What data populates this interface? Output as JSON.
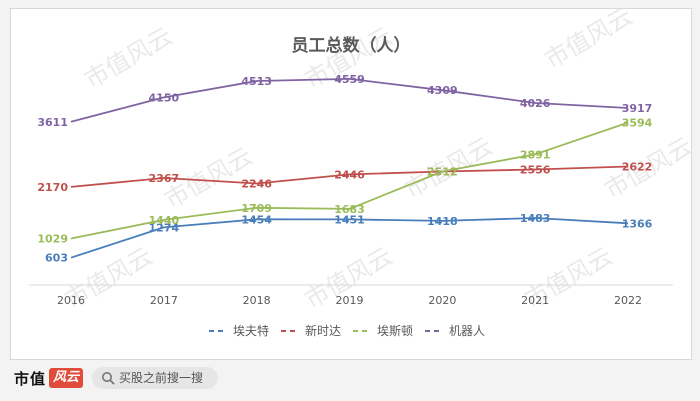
{
  "chart_data": {
    "type": "line",
    "title": "员工总数（人）",
    "xlabel": "",
    "ylabel": "",
    "categories": [
      "2016",
      "2017",
      "2018",
      "2019",
      "2020",
      "2021",
      "2022"
    ],
    "ylim": [
      0,
      5000
    ],
    "grid": false,
    "legend_position": "bottom",
    "series": [
      {
        "name": "埃夫特",
        "color": "#4a7ebb",
        "values": [
          603,
          1274,
          1454,
          1451,
          1418,
          1483,
          1366
        ]
      },
      {
        "name": "新时达",
        "color": "#c0504d",
        "values": [
          2170,
          2367,
          2246,
          2446,
          2512,
          2556,
          2622
        ]
      },
      {
        "name": "埃斯顿",
        "color": "#9bbb59",
        "values": [
          1029,
          1440,
          1709,
          1683,
          2512,
          2891,
          3594
        ]
      },
      {
        "name": "机器人",
        "color": "#8064a2",
        "values": [
          3611,
          4150,
          4513,
          4559,
          4309,
          4026,
          3917
        ]
      }
    ]
  },
  "watermark": "市值风云",
  "footer": {
    "logo_text": "市值",
    "logo_mark": "风云",
    "search_icon": "search-icon",
    "search_text": "买股之前搜一搜"
  }
}
